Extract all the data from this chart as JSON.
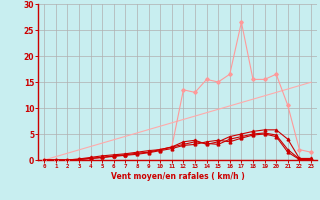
{
  "background_color": "#c8eef0",
  "grid_color": "#b0b0b0",
  "xlabel": "Vent moyen/en rafales ( km/h )",
  "x_values": [
    0,
    1,
    2,
    3,
    4,
    5,
    6,
    7,
    8,
    9,
    10,
    11,
    12,
    13,
    14,
    15,
    16,
    17,
    18,
    19,
    20,
    21,
    22,
    23
  ],
  "line_light_pink": [
    0,
    0,
    0,
    0.2,
    0.3,
    0.5,
    0.7,
    1.0,
    1.3,
    1.5,
    2.0,
    2.5,
    13.5,
    13.0,
    15.5,
    15.0,
    16.5,
    26.5,
    15.5,
    15.5,
    16.5,
    10.5,
    2.0,
    1.5
  ],
  "line_diagonal": [
    0,
    0.65,
    1.3,
    1.95,
    2.6,
    3.25,
    3.9,
    4.55,
    5.2,
    5.85,
    6.5,
    7.15,
    7.8,
    8.45,
    9.1,
    9.75,
    10.4,
    11.05,
    11.7,
    12.35,
    13.0,
    13.65,
    14.3,
    14.95
  ],
  "line_dark_red1": [
    0,
    0,
    0,
    0.2,
    0.5,
    0.8,
    1.0,
    1.2,
    1.5,
    1.8,
    2.0,
    2.5,
    3.5,
    3.8,
    3.0,
    3.5,
    4.5,
    5.0,
    5.5,
    5.8,
    5.8,
    4.0,
    0.3,
    0.3
  ],
  "line_dark_red2": [
    0,
    0,
    0,
    0.1,
    0.3,
    0.5,
    0.8,
    1.0,
    1.3,
    1.5,
    2.0,
    2.5,
    3.0,
    3.5,
    3.2,
    3.0,
    4.0,
    4.5,
    5.0,
    5.2,
    4.8,
    2.0,
    0.2,
    0.2
  ],
  "line_dark_red3": [
    0,
    0,
    0,
    0.1,
    0.3,
    0.5,
    0.7,
    0.9,
    1.1,
    1.4,
    1.8,
    2.2,
    2.8,
    3.0,
    3.5,
    3.8,
    3.5,
    4.2,
    4.8,
    5.0,
    4.5,
    1.5,
    0.1,
    0.1
  ],
  "ylim": [
    0,
    30
  ],
  "yticks": [
    0,
    5,
    10,
    15,
    20,
    25,
    30
  ],
  "color_light": "#ff9999",
  "color_diag": "#ffaaaa",
  "color_dark": "#cc0000"
}
